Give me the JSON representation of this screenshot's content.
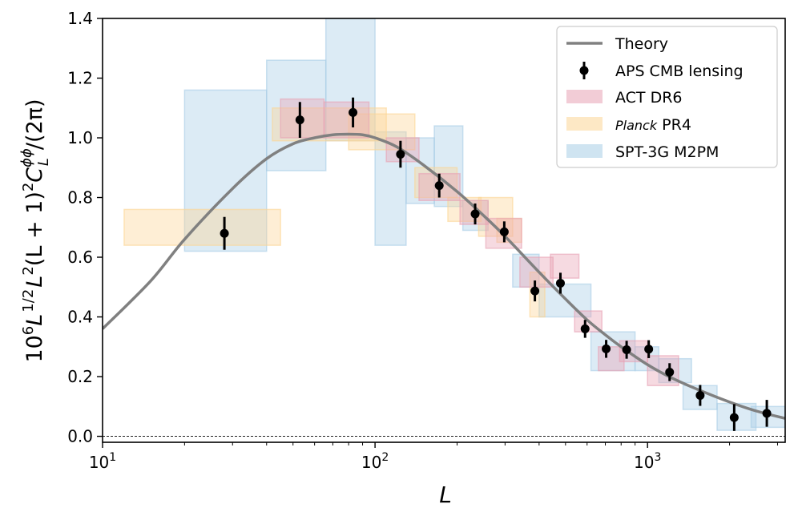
{
  "chart_data": {
    "type": "scatter",
    "title": "",
    "xlabel": "L",
    "ylabel_parts": {
      "base": "10",
      "exp6": "6",
      "L1": "L",
      "half": "1/2",
      "L2": "L",
      "sq1": "2",
      "mid": "(L + 1)",
      "sq2": "2",
      "C": "C",
      "sub": "L",
      "sup": "ϕϕ",
      "tail": "/(2π)"
    },
    "xscale": "log",
    "xlim": [
      10,
      3200
    ],
    "ylim": [
      -0.02,
      1.4
    ],
    "x_ticks": [
      {
        "value": 10,
        "base": "10",
        "exp": "1"
      },
      {
        "value": 100,
        "base": "10",
        "exp": "2"
      },
      {
        "value": 1000,
        "base": "10",
        "exp": "3"
      }
    ],
    "y_ticks": [
      "0.0",
      "0.2",
      "0.4",
      "0.6",
      "0.8",
      "1.0",
      "1.2",
      "1.4"
    ],
    "legend_position": "top-right",
    "legend": [
      {
        "key": "theory",
        "label": "Theory"
      },
      {
        "key": "aps",
        "label": "APS CMB lensing"
      },
      {
        "key": "act",
        "label": "ACT DR6"
      },
      {
        "key": "planck",
        "label_italic": "Planck",
        "label": "PR4"
      },
      {
        "key": "spt",
        "label": "SPT-3G M2PM"
      }
    ],
    "colors": {
      "theory": "#808080",
      "aps": "#000000",
      "act": "#e8a2b4",
      "planck": "#fcd595",
      "spt": "#a8cde6"
    },
    "theory_curve": [
      [
        10,
        0.36
      ],
      [
        15,
        0.52
      ],
      [
        20,
        0.66
      ],
      [
        30,
        0.83
      ],
      [
        40,
        0.93
      ],
      [
        50,
        0.98
      ],
      [
        60,
        1.0
      ],
      [
        70,
        1.01
      ],
      [
        80,
        1.012
      ],
      [
        90,
        1.01
      ],
      [
        100,
        1.0
      ],
      [
        120,
        0.97
      ],
      [
        150,
        0.91
      ],
      [
        200,
        0.82
      ],
      [
        250,
        0.74
      ],
      [
        300,
        0.67
      ],
      [
        400,
        0.55
      ],
      [
        500,
        0.46
      ],
      [
        600,
        0.39
      ],
      [
        700,
        0.34
      ],
      [
        800,
        0.3
      ],
      [
        1000,
        0.24
      ],
      [
        1200,
        0.2
      ],
      [
        1500,
        0.16
      ],
      [
        2000,
        0.115
      ],
      [
        2500,
        0.085
      ],
      [
        3200,
        0.06
      ]
    ],
    "aps_points": [
      {
        "L": 28,
        "y": 0.68,
        "err": 0.055
      },
      {
        "L": 53,
        "y": 1.06,
        "err": 0.06
      },
      {
        "L": 83,
        "y": 1.085,
        "err": 0.05
      },
      {
        "L": 124,
        "y": 0.945,
        "err": 0.045
      },
      {
        "L": 172,
        "y": 0.84,
        "err": 0.04
      },
      {
        "L": 233,
        "y": 0.745,
        "err": 0.035
      },
      {
        "L": 298,
        "y": 0.685,
        "err": 0.035
      },
      {
        "L": 386,
        "y": 0.487,
        "err": 0.035
      },
      {
        "L": 479,
        "y": 0.513,
        "err": 0.035
      },
      {
        "L": 590,
        "y": 0.36,
        "err": 0.03
      },
      {
        "L": 705,
        "y": 0.293,
        "err": 0.03
      },
      {
        "L": 838,
        "y": 0.29,
        "err": 0.03
      },
      {
        "L": 1010,
        "y": 0.292,
        "err": 0.03
      },
      {
        "L": 1205,
        "y": 0.215,
        "err": 0.03
      },
      {
        "L": 1560,
        "y": 0.137,
        "err": 0.035
      },
      {
        "L": 2080,
        "y": 0.063,
        "err": 0.045
      },
      {
        "L": 2740,
        "y": 0.077,
        "err": 0.045
      }
    ],
    "act_boxes": [
      {
        "x0": 45,
        "x1": 65,
        "y0": 1.0,
        "y1": 1.13
      },
      {
        "x0": 65,
        "x1": 95,
        "y0": 1.0,
        "y1": 1.12
      },
      {
        "x0": 110,
        "x1": 145,
        "y0": 0.92,
        "y1": 1.0
      },
      {
        "x0": 145,
        "x1": 205,
        "y0": 0.79,
        "y1": 0.88
      },
      {
        "x0": 205,
        "x1": 260,
        "y0": 0.71,
        "y1": 0.79
      },
      {
        "x0": 255,
        "x1": 345,
        "y0": 0.63,
        "y1": 0.73
      },
      {
        "x0": 340,
        "x1": 450,
        "y0": 0.5,
        "y1": 0.6
      },
      {
        "x0": 440,
        "x1": 560,
        "y0": 0.53,
        "y1": 0.61
      },
      {
        "x0": 540,
        "x1": 680,
        "y0": 0.35,
        "y1": 0.42
      },
      {
        "x0": 660,
        "x1": 820,
        "y0": 0.22,
        "y1": 0.3
      },
      {
        "x0": 790,
        "x1": 1000,
        "y0": 0.25,
        "y1": 0.32
      },
      {
        "x0": 1000,
        "x1": 1300,
        "y0": 0.17,
        "y1": 0.27
      }
    ],
    "planck_boxes": [
      {
        "x0": 12,
        "x1": 45,
        "y0": 0.64,
        "y1": 0.76
      },
      {
        "x0": 42,
        "x1": 110,
        "y0": 0.99,
        "y1": 1.1
      },
      {
        "x0": 80,
        "x1": 140,
        "y0": 0.96,
        "y1": 1.08
      },
      {
        "x0": 140,
        "x1": 200,
        "y0": 0.8,
        "y1": 0.9
      },
      {
        "x0": 185,
        "x1": 245,
        "y0": 0.72,
        "y1": 0.8
      },
      {
        "x0": 240,
        "x1": 320,
        "y0": 0.67,
        "y1": 0.8
      },
      {
        "x0": 280,
        "x1": 345,
        "y0": 0.65,
        "y1": 0.73
      },
      {
        "x0": 370,
        "x1": 420,
        "y0": 0.4,
        "y1": 0.55
      }
    ],
    "spt_boxes": [
      {
        "x0": 20,
        "x1": 40,
        "y0": 0.62,
        "y1": 1.16
      },
      {
        "x0": 40,
        "x1": 66,
        "y0": 0.89,
        "y1": 1.26
      },
      {
        "x0": 66,
        "x1": 100,
        "y0": 0.99,
        "y1": 1.4
      },
      {
        "x0": 100,
        "x1": 130,
        "y0": 0.64,
        "y1": 1.02
      },
      {
        "x0": 130,
        "x1": 165,
        "y0": 0.78,
        "y1": 1.0
      },
      {
        "x0": 165,
        "x1": 210,
        "y0": 0.77,
        "y1": 1.04
      },
      {
        "x0": 210,
        "x1": 260,
        "y0": 0.69,
        "y1": 0.79
      },
      {
        "x0": 320,
        "x1": 400,
        "y0": 0.5,
        "y1": 0.61
      },
      {
        "x0": 400,
        "x1": 620,
        "y0": 0.4,
        "y1": 0.51
      },
      {
        "x0": 620,
        "x1": 900,
        "y0": 0.22,
        "y1": 0.35
      },
      {
        "x0": 900,
        "x1": 1100,
        "y0": 0.22,
        "y1": 0.3
      },
      {
        "x0": 1100,
        "x1": 1450,
        "y0": 0.18,
        "y1": 0.26
      },
      {
        "x0": 1350,
        "x1": 1800,
        "y0": 0.09,
        "y1": 0.17
      },
      {
        "x0": 1800,
        "x1": 2500,
        "y0": 0.02,
        "y1": 0.11
      },
      {
        "x0": 2400,
        "x1": 3200,
        "y0": 0.03,
        "y1": 0.1
      }
    ]
  }
}
